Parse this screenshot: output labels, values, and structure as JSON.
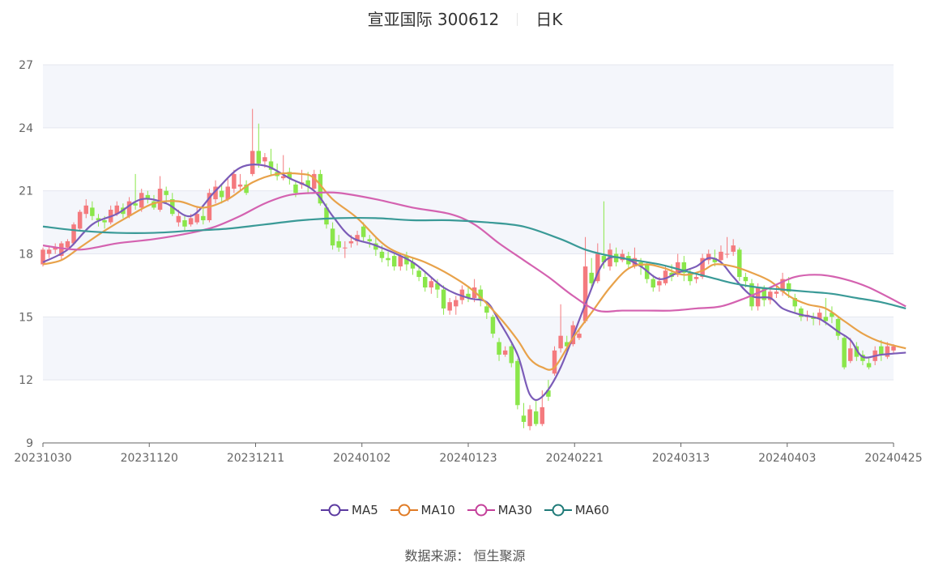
{
  "header": {
    "title": "宣亚国际 300612",
    "period": "日K"
  },
  "source": "数据来源： 恒生聚源",
  "chart_data": {
    "type": "candlestick",
    "title": "宣亚国际 300612",
    "ylim": [
      9,
      27
    ],
    "y_ticks": [
      "27",
      "24",
      "21",
      "18",
      "15",
      "12",
      "9"
    ],
    "x_ticks": [
      "20231030",
      "20231120",
      "20231211",
      "20240102",
      "20240123",
      "20240221",
      "20240313",
      "20240403",
      "20240425"
    ],
    "colors": {
      "up": "#f47a7e",
      "down": "#8ae64a",
      "MA5": "#7b5cb8",
      "MA10": "#e8a24a",
      "MA30": "#d462b0",
      "MA60": "#3a9a97",
      "band": "#f4f6fb",
      "grid": "#e4e7ef"
    },
    "candles": [
      [
        17.5,
        18.2,
        18.3,
        17.4
      ],
      [
        18.0,
        18.2,
        18.4,
        17.8
      ],
      [
        18.2,
        18.3,
        18.5,
        18.0
      ],
      [
        17.9,
        18.5,
        18.6,
        17.7
      ],
      [
        18.3,
        18.6,
        18.7,
        18.2
      ],
      [
        18.5,
        19.4,
        19.5,
        18.4
      ],
      [
        19.2,
        20.0,
        20.1,
        19.1
      ],
      [
        19.9,
        20.3,
        20.6,
        19.7
      ],
      [
        20.2,
        19.8,
        20.5,
        19.6
      ],
      [
        19.7,
        19.6,
        19.9,
        19.3
      ],
      [
        19.6,
        19.5,
        19.8,
        19.2
      ],
      [
        19.5,
        20.1,
        20.3,
        19.4
      ],
      [
        19.9,
        20.3,
        20.5,
        19.8
      ],
      [
        20.2,
        19.9,
        20.4,
        19.7
      ],
      [
        19.8,
        20.5,
        20.7,
        19.7
      ],
      [
        20.4,
        20.3,
        21.8,
        20.1
      ],
      [
        20.2,
        20.9,
        21.1,
        20.0
      ],
      [
        20.8,
        20.6,
        21.0,
        20.4
      ],
      [
        20.5,
        20.2,
        20.8,
        20.1
      ],
      [
        20.1,
        21.1,
        21.7,
        20.0
      ],
      [
        21.0,
        20.8,
        21.2,
        20.4
      ],
      [
        20.6,
        19.9,
        20.9,
        19.8
      ],
      [
        19.5,
        19.8,
        20.1,
        19.3
      ],
      [
        19.6,
        19.3,
        19.8,
        19.1
      ],
      [
        19.4,
        19.7,
        19.9,
        19.3
      ],
      [
        19.5,
        19.9,
        20.2,
        19.4
      ],
      [
        19.8,
        19.6,
        20.2,
        19.4
      ],
      [
        19.6,
        20.9,
        21.1,
        19.5
      ],
      [
        20.6,
        21.2,
        21.5,
        20.4
      ],
      [
        21.0,
        20.7,
        21.3,
        20.4
      ],
      [
        20.6,
        21.2,
        21.6,
        20.5
      ],
      [
        21.1,
        21.8,
        22.0,
        20.9
      ],
      [
        21.2,
        21.3,
        21.8,
        21.0
      ],
      [
        21.3,
        20.9,
        21.5,
        20.8
      ],
      [
        21.8,
        22.9,
        24.9,
        21.7
      ],
      [
        22.9,
        22.3,
        24.2,
        22.1
      ],
      [
        22.4,
        22.6,
        22.8,
        22.1
      ],
      [
        22.4,
        22.0,
        23.0,
        21.7
      ],
      [
        21.9,
        21.7,
        22.3,
        21.5
      ],
      [
        21.6,
        21.7,
        22.7,
        21.5
      ],
      [
        21.9,
        21.6,
        22.1,
        21.3
      ],
      [
        21.3,
        20.9,
        21.5,
        20.7
      ],
      [
        21.3,
        21.4,
        22.0,
        21.1
      ],
      [
        21.5,
        21.2,
        21.9,
        20.9
      ],
      [
        21.1,
        21.8,
        22.0,
        20.9
      ],
      [
        21.8,
        20.4,
        22.0,
        20.3
      ],
      [
        20.2,
        19.4,
        20.4,
        19.2
      ],
      [
        19.2,
        18.4,
        19.5,
        18.2
      ],
      [
        18.6,
        18.3,
        18.9,
        18.1
      ],
      [
        18.3,
        18.3,
        18.6,
        17.8
      ],
      [
        18.5,
        18.6,
        18.9,
        18.3
      ],
      [
        18.6,
        18.9,
        19.1,
        18.4
      ],
      [
        19.3,
        18.8,
        19.5,
        18.6
      ],
      [
        18.7,
        18.6,
        18.9,
        18.3
      ],
      [
        18.5,
        18.2,
        18.8,
        17.9
      ],
      [
        18.1,
        17.8,
        18.4,
        17.6
      ],
      [
        17.8,
        17.7,
        18.1,
        17.4
      ],
      [
        17.9,
        17.4,
        18.0,
        17.2
      ],
      [
        17.4,
        17.9,
        18.0,
        17.2
      ],
      [
        17.9,
        17.5,
        18.1,
        17.2
      ],
      [
        17.6,
        17.3,
        17.8,
        17.0
      ],
      [
        17.2,
        16.9,
        17.4,
        16.7
      ],
      [
        16.9,
        16.4,
        17.1,
        16.2
      ],
      [
        16.4,
        16.7,
        16.9,
        16.1
      ],
      [
        16.6,
        16.3,
        16.8,
        15.9
      ],
      [
        16.3,
        15.4,
        16.5,
        15.1
      ],
      [
        15.3,
        15.7,
        15.9,
        15.1
      ],
      [
        15.5,
        15.8,
        16.0,
        15.1
      ],
      [
        15.8,
        16.3,
        16.5,
        15.6
      ],
      [
        16.1,
        15.9,
        16.4,
        15.7
      ],
      [
        15.9,
        16.4,
        16.8,
        15.7
      ],
      [
        16.3,
        15.8,
        16.5,
        15.5
      ],
      [
        15.5,
        15.2,
        15.7,
        14.9
      ],
      [
        15.0,
        14.2,
        15.1,
        14.0
      ],
      [
        13.8,
        13.2,
        14.0,
        12.9
      ],
      [
        13.2,
        13.4,
        13.6,
        13.1
      ],
      [
        13.6,
        12.8,
        13.7,
        12.6
      ],
      [
        12.9,
        10.8,
        13.0,
        10.6
      ],
      [
        10.3,
        10.0,
        10.9,
        9.7
      ],
      [
        9.8,
        10.6,
        10.8,
        9.6
      ],
      [
        10.5,
        9.9,
        11.0,
        9.8
      ],
      [
        9.9,
        10.7,
        11.5,
        9.8
      ],
      [
        11.5,
        11.2,
        12.0,
        11.0
      ],
      [
        12.3,
        13.4,
        13.6,
        12.2
      ],
      [
        13.5,
        14.1,
        15.6,
        13.3
      ],
      [
        13.8,
        13.6,
        14.1,
        13.2
      ],
      [
        13.7,
        14.6,
        14.8,
        13.6
      ],
      [
        14.0,
        14.2,
        14.4,
        13.9
      ],
      [
        14.8,
        17.4,
        18.8,
        14.7
      ],
      [
        17.1,
        16.6,
        17.8,
        16.4
      ],
      [
        16.7,
        18.0,
        18.5,
        16.6
      ],
      [
        17.9,
        17.6,
        20.5,
        17.3
      ],
      [
        17.4,
        18.2,
        18.5,
        17.2
      ],
      [
        18.0,
        17.6,
        18.3,
        17.4
      ],
      [
        17.7,
        18.0,
        18.2,
        17.6
      ],
      [
        17.9,
        17.5,
        18.1,
        17.3
      ],
      [
        17.4,
        17.8,
        18.3,
        17.3
      ],
      [
        17.6,
        17.4,
        17.8,
        17.0
      ],
      [
        17.5,
        16.8,
        17.6,
        16.6
      ],
      [
        16.8,
        16.4,
        17.0,
        16.2
      ],
      [
        16.5,
        16.7,
        16.9,
        16.2
      ],
      [
        16.6,
        17.2,
        17.4,
        16.5
      ],
      [
        17.1,
        16.9,
        17.5,
        16.7
      ],
      [
        17.0,
        17.6,
        18.0,
        16.9
      ],
      [
        17.6,
        17.1,
        17.9,
        16.7
      ],
      [
        17.1,
        16.7,
        17.3,
        16.5
      ],
      [
        16.8,
        16.9,
        17.1,
        16.6
      ],
      [
        16.9,
        17.8,
        18.0,
        16.8
      ],
      [
        17.7,
        18.0,
        18.2,
        17.5
      ],
      [
        17.8,
        17.6,
        18.2,
        17.4
      ],
      [
        17.7,
        18.1,
        18.4,
        17.6
      ],
      [
        18.0,
        18.0,
        18.8,
        17.8
      ],
      [
        18.1,
        18.4,
        18.7,
        17.9
      ],
      [
        18.2,
        16.9,
        18.3,
        16.7
      ],
      [
        16.9,
        16.7,
        17.1,
        16.4
      ],
      [
        16.6,
        15.5,
        16.8,
        15.3
      ],
      [
        15.5,
        16.4,
        16.6,
        15.3
      ],
      [
        16.4,
        15.8,
        16.5,
        15.5
      ],
      [
        15.8,
        16.2,
        16.4,
        15.6
      ],
      [
        16.1,
        16.2,
        16.5,
        15.9
      ],
      [
        16.2,
        16.8,
        17.1,
        16.0
      ],
      [
        16.6,
        16.2,
        16.9,
        15.9
      ],
      [
        15.9,
        15.5,
        16.1,
        15.2
      ],
      [
        15.4,
        15.0,
        15.5,
        14.8
      ],
      [
        15.0,
        15.1,
        15.3,
        14.8
      ],
      [
        15.0,
        14.9,
        15.2,
        14.6
      ],
      [
        14.9,
        15.2,
        15.4,
        14.6
      ],
      [
        15.0,
        14.8,
        15.9,
        14.6
      ],
      [
        15.2,
        15.0,
        15.5,
        14.7
      ],
      [
        14.9,
        14.1,
        15.0,
        13.9
      ],
      [
        14.0,
        12.6,
        14.1,
        12.5
      ],
      [
        12.9,
        13.5,
        14.0,
        12.8
      ],
      [
        13.6,
        13.1,
        13.8,
        12.9
      ],
      [
        13.2,
        12.9,
        13.4,
        12.7
      ],
      [
        12.8,
        12.6,
        13.1,
        12.5
      ],
      [
        12.9,
        13.4,
        13.6,
        12.7
      ],
      [
        13.6,
        13.2,
        13.9,
        12.9
      ],
      [
        13.1,
        13.6,
        13.8,
        13.0
      ],
      [
        13.4,
        13.6,
        13.7,
        13.3
      ]
    ],
    "series": [
      {
        "name": "MA5",
        "points": [
          [
            0,
            17.6
          ],
          [
            4,
            18.2
          ],
          [
            8,
            19.4
          ],
          [
            12,
            19.9
          ],
          [
            16,
            20.6
          ],
          [
            20,
            20.4
          ],
          [
            24,
            19.8
          ],
          [
            28,
            21.0
          ],
          [
            32,
            22.1
          ],
          [
            36,
            22.2
          ],
          [
            40,
            21.6
          ],
          [
            44,
            21.0
          ],
          [
            47,
            19.8
          ],
          [
            50,
            18.8
          ],
          [
            54,
            18.4
          ],
          [
            60,
            17.6
          ],
          [
            65,
            16.4
          ],
          [
            69,
            15.9
          ],
          [
            72,
            15.7
          ],
          [
            74,
            14.8
          ],
          [
            77,
            13.2
          ],
          [
            79,
            11.3
          ],
          [
            81,
            11.2
          ],
          [
            84,
            12.6
          ],
          [
            88,
            15.6
          ],
          [
            91,
            17.6
          ],
          [
            94,
            17.8
          ],
          [
            97,
            17.4
          ],
          [
            100,
            16.8
          ],
          [
            103,
            17.1
          ],
          [
            106,
            17.4
          ],
          [
            108,
            17.8
          ],
          [
            110,
            17.6
          ],
          [
            112,
            16.9
          ],
          [
            115,
            16.0
          ],
          [
            118,
            15.9
          ],
          [
            120,
            15.4
          ],
          [
            123,
            15.1
          ],
          [
            126,
            14.9
          ],
          [
            129,
            14.3
          ],
          [
            131,
            13.9
          ],
          [
            133,
            13.1
          ],
          [
            136,
            13.2
          ],
          [
            140,
            13.3
          ]
        ]
      },
      {
        "name": "MA10",
        "points": [
          [
            0,
            17.5
          ],
          [
            3,
            17.7
          ],
          [
            6,
            18.3
          ],
          [
            10,
            19.1
          ],
          [
            14,
            19.8
          ],
          [
            18,
            20.4
          ],
          [
            22,
            20.5
          ],
          [
            26,
            20.2
          ],
          [
            30,
            20.6
          ],
          [
            34,
            21.4
          ],
          [
            38,
            21.8
          ],
          [
            42,
            21.8
          ],
          [
            44,
            21.6
          ],
          [
            47,
            20.6
          ],
          [
            51,
            19.7
          ],
          [
            56,
            18.3
          ],
          [
            62,
            17.6
          ],
          [
            66,
            17.0
          ],
          [
            70,
            16.2
          ],
          [
            74,
            15.0
          ],
          [
            77,
            13.9
          ],
          [
            79,
            13.0
          ],
          [
            81,
            12.6
          ],
          [
            83,
            12.6
          ],
          [
            86,
            14.0
          ],
          [
            89,
            15.2
          ],
          [
            92,
            16.4
          ],
          [
            95,
            17.3
          ],
          [
            98,
            17.5
          ],
          [
            101,
            17.3
          ],
          [
            104,
            17.0
          ],
          [
            107,
            17.2
          ],
          [
            109,
            17.5
          ],
          [
            112,
            17.4
          ],
          [
            115,
            17.1
          ],
          [
            118,
            16.7
          ],
          [
            121,
            16.0
          ],
          [
            124,
            15.6
          ],
          [
            127,
            15.4
          ],
          [
            130,
            14.8
          ],
          [
            133,
            14.2
          ],
          [
            136,
            13.8
          ],
          [
            140,
            13.5
          ]
        ]
      },
      {
        "name": "MA30",
        "points": [
          [
            0,
            18.4
          ],
          [
            6,
            18.2
          ],
          [
            12,
            18.5
          ],
          [
            18,
            18.7
          ],
          [
            24,
            19.0
          ],
          [
            28,
            19.3
          ],
          [
            32,
            19.8
          ],
          [
            36,
            20.4
          ],
          [
            40,
            20.8
          ],
          [
            44,
            20.9
          ],
          [
            48,
            20.9
          ],
          [
            54,
            20.6
          ],
          [
            60,
            20.2
          ],
          [
            66,
            19.9
          ],
          [
            70,
            19.4
          ],
          [
            74,
            18.5
          ],
          [
            78,
            17.7
          ],
          [
            82,
            16.9
          ],
          [
            86,
            16.0
          ],
          [
            90,
            15.3
          ],
          [
            94,
            15.3
          ],
          [
            98,
            15.3
          ],
          [
            102,
            15.3
          ],
          [
            106,
            15.4
          ],
          [
            110,
            15.5
          ],
          [
            114,
            15.9
          ],
          [
            118,
            16.4
          ],
          [
            122,
            16.9
          ],
          [
            126,
            17.0
          ],
          [
            130,
            16.8
          ],
          [
            134,
            16.4
          ],
          [
            140,
            15.5
          ]
        ]
      },
      {
        "name": "MA60",
        "points": [
          [
            0,
            19.3
          ],
          [
            6,
            19.1
          ],
          [
            12,
            19.0
          ],
          [
            18,
            19.0
          ],
          [
            24,
            19.1
          ],
          [
            30,
            19.2
          ],
          [
            36,
            19.4
          ],
          [
            42,
            19.6
          ],
          [
            48,
            19.7
          ],
          [
            54,
            19.7
          ],
          [
            60,
            19.6
          ],
          [
            66,
            19.6
          ],
          [
            72,
            19.5
          ],
          [
            78,
            19.3
          ],
          [
            84,
            18.7
          ],
          [
            88,
            18.2
          ],
          [
            92,
            17.9
          ],
          [
            96,
            17.7
          ],
          [
            100,
            17.5
          ],
          [
            104,
            17.2
          ],
          [
            108,
            16.9
          ],
          [
            112,
            16.6
          ],
          [
            116,
            16.4
          ],
          [
            120,
            16.3
          ],
          [
            124,
            16.2
          ],
          [
            128,
            16.1
          ],
          [
            132,
            15.9
          ],
          [
            136,
            15.7
          ],
          [
            140,
            15.4
          ]
        ]
      }
    ]
  }
}
